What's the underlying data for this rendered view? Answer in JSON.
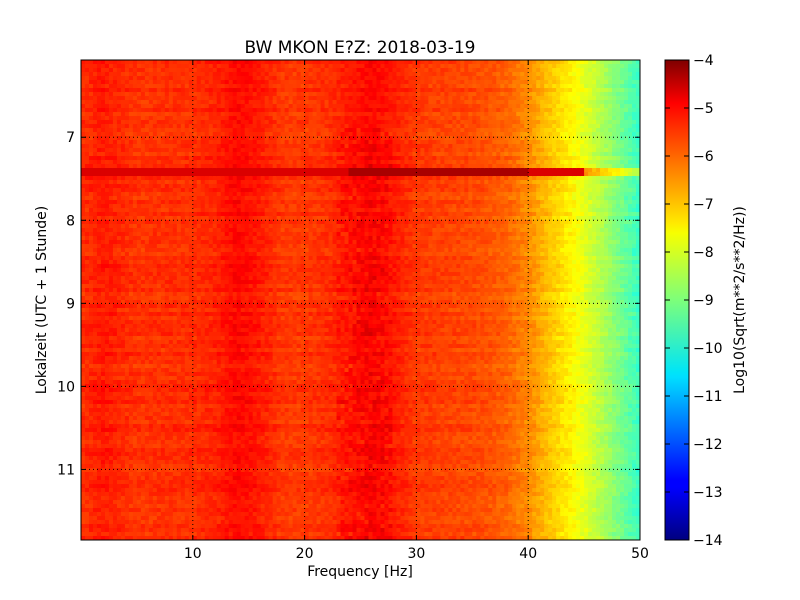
{
  "chart_data": {
    "type": "heatmap",
    "title": "BW MKON E?Z: 2018-03-19",
    "xlabel": "Frequency [Hz]",
    "ylabel": "Lokalzeit (UTC + 1 Stunde)",
    "xlim": [
      0,
      50
    ],
    "ylim": [
      11.85,
      6.07
    ],
    "y_inverted": true,
    "x_ticks": [
      10,
      20,
      30,
      40,
      50
    ],
    "x_tick_labels": [
      "10",
      "20",
      "30",
      "40",
      "50"
    ],
    "y_ticks": [
      7,
      8,
      9,
      10,
      11
    ],
    "y_tick_labels": [
      "7",
      "8",
      "9",
      "10",
      "11"
    ],
    "grid": true,
    "colormap": "jet",
    "colorbar": {
      "label": "Log10(Sqrt(m**2/s**2/Hz))",
      "range": [
        -14,
        -4
      ],
      "ticks": [
        -4,
        -5,
        -6,
        -7,
        -8,
        -9,
        -10,
        -11,
        -12,
        -13,
        -14
      ],
      "tick_labels": [
        "−4",
        "−5",
        "−6",
        "−7",
        "−8",
        "−9",
        "−10",
        "−11",
        "−12",
        "−13",
        "−14"
      ]
    },
    "frequency_profile_hz": [
      0,
      2,
      5,
      8,
      10,
      12,
      14,
      16,
      18,
      20,
      22,
      24,
      26,
      28,
      30,
      33,
      36,
      38,
      40,
      42,
      44,
      46,
      48,
      50
    ],
    "frequency_profile_log10": [
      -5.7,
      -5.5,
      -5.75,
      -5.7,
      -5.7,
      -5.6,
      -5.3,
      -5.5,
      -5.8,
      -5.8,
      -5.7,
      -5.5,
      -5.3,
      -5.5,
      -5.8,
      -5.9,
      -6.0,
      -6.2,
      -6.6,
      -7.2,
      -7.7,
      -8.3,
      -9.0,
      -9.7
    ],
    "annotations": [
      {
        "name": "broadband event line",
        "time": 7.41,
        "freq_range": [
          0,
          50
        ],
        "value_peak": -4.4
      },
      {
        "name": "energetic band",
        "freq_range": [
          23,
          28
        ],
        "time_range": [
          6.9,
          11.85
        ],
        "value": -5.1
      }
    ]
  }
}
